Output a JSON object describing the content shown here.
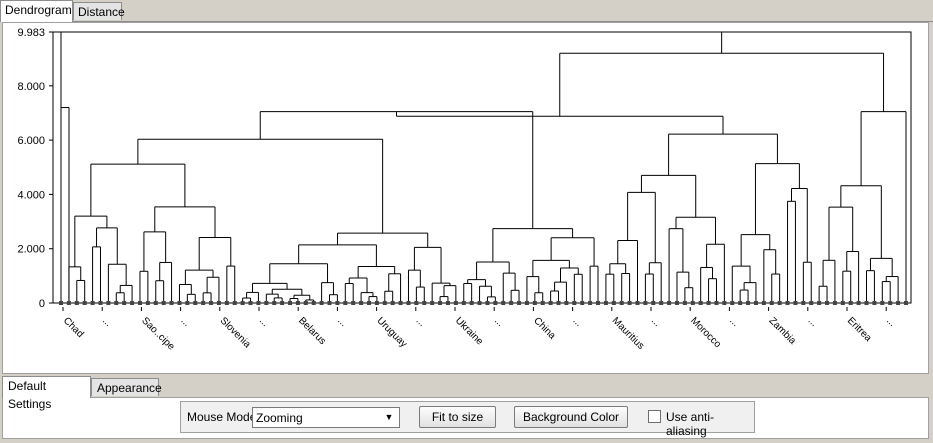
{
  "tabs": {
    "dendrogram": "Dendrogram",
    "distance": "Distance"
  },
  "settings_tabs": {
    "default": "Default Settings",
    "appearance": "Appearance"
  },
  "controls": {
    "mouse_mode_label": "Mouse Mode",
    "mouse_mode_value": "Zooming",
    "fit_button": "Fit to size",
    "bg_button": "Background Color",
    "antialias_label": "Use anti-aliasing",
    "antialias_checked": false
  },
  "chart_data": {
    "type": "dendrogram",
    "title": "",
    "ylabel": "",
    "xlabel": "",
    "ylim": [
      0,
      9.983
    ],
    "y_ticks": [
      "0",
      "2.000",
      "4.000",
      "6.000",
      "8.000",
      "9.983"
    ],
    "leaf_count": 108,
    "leaf_labels": [
      "Chad",
      "...",
      "Sao..cipe",
      "...",
      "Slovenia",
      "...",
      "Belarus",
      "...",
      "Uruguay",
      "...",
      "Ukraine",
      "...",
      "China",
      "...",
      "Mauritius",
      "...",
      "Morocco",
      "...",
      "Zambia",
      "...",
      "Eritrea",
      "..."
    ],
    "merge_heights": [
      9.983,
      9.2,
      7.2,
      7.05,
      6.88,
      6.22,
      6.22,
      5.55,
      5.5,
      5.15,
      4.73,
      4.5,
      4.45,
      4.35,
      4.15,
      4.15,
      4.05,
      4.0,
      3.7,
      3.15,
      3.05,
      2.9,
      2.8,
      2.35,
      2.2,
      2.0,
      1.5,
      1.3,
      1.0,
      0.5,
      0.2
    ]
  }
}
